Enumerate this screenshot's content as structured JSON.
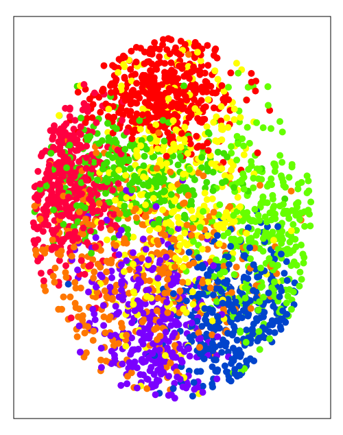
{
  "chart_data": {
    "type": "scatter",
    "title": "",
    "xlabel": "",
    "ylabel": "",
    "xlim": [
      0,
      100
    ],
    "ylim": [
      0,
      100
    ],
    "axes_ticks": false,
    "grid": false,
    "legend": "none",
    "series": [
      {
        "color": "#ff0000",
        "center": [
          47,
          81
        ],
        "spread": [
          11,
          7.5
        ],
        "count": 420
      },
      {
        "color": "#ff0040",
        "center": [
          16,
          58
        ],
        "spread": [
          7.5,
          11
        ],
        "count": 400
      },
      {
        "color": "#ffff00",
        "center": [
          52,
          54
        ],
        "spread": [
          12,
          18
        ],
        "count": 380
      },
      {
        "color": "#3fe000",
        "center": [
          38,
          60
        ],
        "spread": [
          16,
          8
        ],
        "count": 320
      },
      {
        "color": "#ff7700",
        "center": [
          36,
          37
        ],
        "spread": [
          22,
          14
        ],
        "count": 420
      },
      {
        "color": "#7a00ff",
        "center": [
          42,
          23
        ],
        "spread": [
          10,
          13
        ],
        "count": 360
      },
      {
        "color": "#66ff00",
        "center": [
          78,
          44
        ],
        "spread": [
          10,
          15
        ],
        "count": 330
      },
      {
        "color": "#0044cc",
        "center": [
          70,
          25
        ],
        "spread": [
          11,
          11
        ],
        "count": 360
      }
    ]
  }
}
